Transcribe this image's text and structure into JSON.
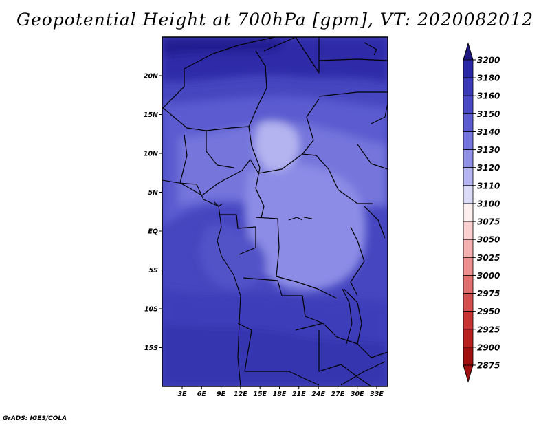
{
  "title": "Geopotential Height at 700hPa [gpm], VT: 2020082012",
  "credit": "GrADS: IGES/COLA",
  "map": {
    "lat_labels": [
      "20N",
      "15N",
      "10N",
      "5N",
      "EQ",
      "5S",
      "10S",
      "15S"
    ],
    "lon_labels": [
      "3E",
      "6E",
      "9E",
      "12E",
      "15E",
      "18E",
      "21E",
      "24E",
      "27E",
      "30E",
      "33E"
    ]
  },
  "legend": {
    "levels": [
      "3200",
      "3180",
      "3160",
      "3150",
      "3140",
      "3130",
      "3120",
      "3110",
      "3100",
      "3075",
      "3050",
      "3025",
      "3000",
      "2975",
      "2950",
      "2925",
      "2900",
      "2875"
    ],
    "colors": [
      "#1e1880",
      "#2b28a8",
      "#3a3ab8",
      "#4848c4",
      "#5c5cd0",
      "#7474dc",
      "#9090e6",
      "#b4b4f0",
      "#dcdcf8",
      "#fff0f0",
      "#fad0d0",
      "#f4b0b0",
      "#ec9090",
      "#e07070",
      "#d45050",
      "#c83434",
      "#b82020",
      "#a01010"
    ]
  },
  "colors": {
    "frame": "#000000",
    "map_base": "#4646c0"
  }
}
